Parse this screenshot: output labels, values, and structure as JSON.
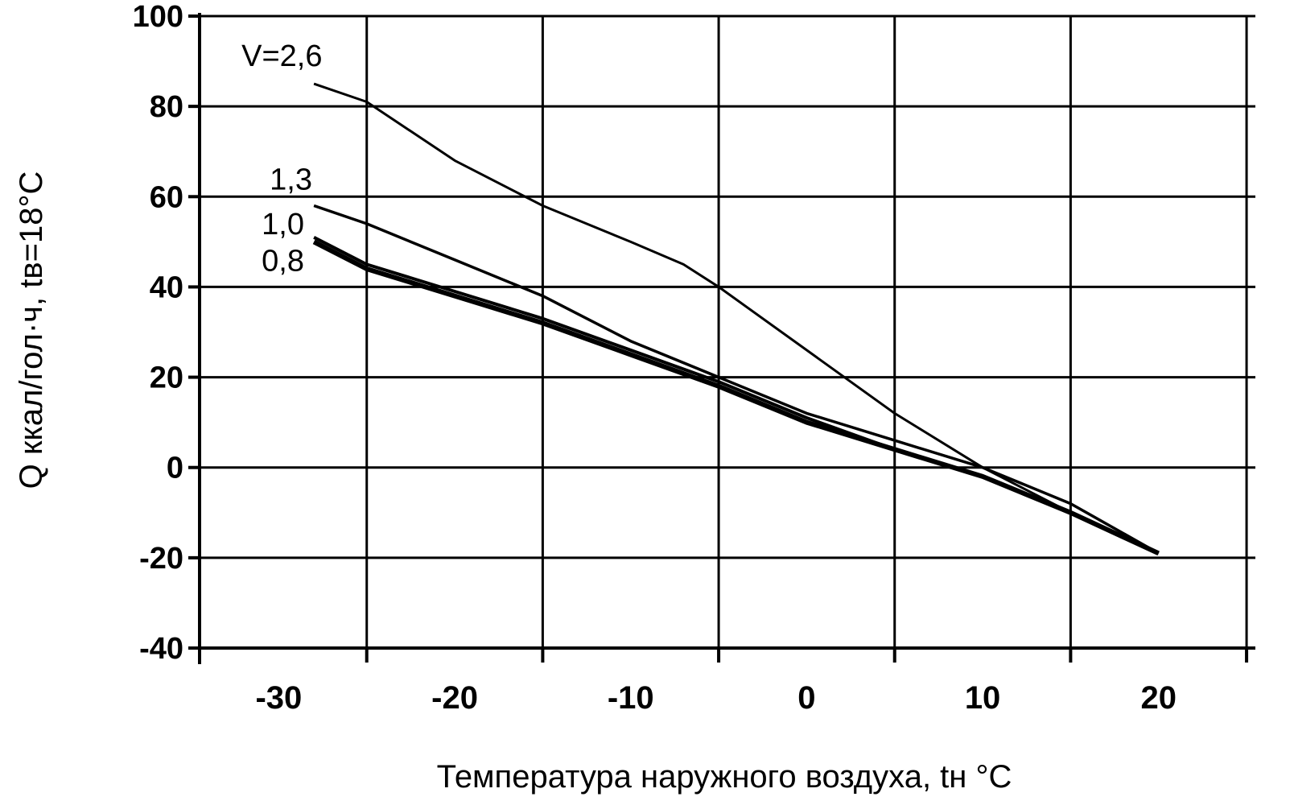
{
  "chart_data": {
    "type": "line",
    "title": "",
    "xlabel": "Температура наружного воздуха, tн °С",
    "ylabel": "Q ккал/гол·ч, tв=18°С",
    "xlim": [
      -34.5,
      25.5
    ],
    "ylim": [
      -40,
      100
    ],
    "x_ticks": [
      -30,
      -20,
      -10,
      0,
      10,
      20
    ],
    "y_ticks": [
      -40,
      -20,
      0,
      20,
      40,
      60,
      80,
      100
    ],
    "x_tick_labels": [
      "-30",
      "-20",
      "-10",
      "0",
      "10",
      "20"
    ],
    "y_tick_labels": [
      "-40",
      "-20",
      "0",
      "20",
      "40",
      "60",
      "80",
      "100"
    ],
    "grid": true,
    "legend": "none",
    "series": [
      {
        "name": "V=2,6",
        "x": [
          -28,
          -25,
          -20,
          -15,
          -10,
          -7,
          -5,
          0,
          5,
          10,
          15,
          20
        ],
        "y": [
          85,
          81,
          68,
          58,
          50,
          45,
          40,
          26,
          12,
          0,
          -10,
          -19
        ]
      },
      {
        "name": "1,3",
        "x": [
          -28,
          -25,
          -20,
          -15,
          -10,
          -5,
          0,
          5,
          10,
          15,
          20
        ],
        "y": [
          58,
          54,
          46,
          38,
          28,
          20,
          12,
          6,
          0,
          -8,
          -19
        ]
      },
      {
        "name": "1,0",
        "x": [
          -28,
          -25,
          -20,
          -15,
          -10,
          -5,
          0,
          5,
          10,
          15,
          20
        ],
        "y": [
          51,
          45,
          39,
          33,
          26,
          19,
          11,
          4,
          -2,
          -10,
          -19
        ]
      },
      {
        "name": "0,8",
        "x": [
          -28,
          -25,
          -20,
          -15,
          -10,
          -5,
          0,
          5,
          10,
          15,
          20
        ],
        "y": [
          50,
          44,
          38,
          32,
          25,
          18,
          10,
          4,
          -2,
          -10,
          -19
        ]
      }
    ]
  }
}
